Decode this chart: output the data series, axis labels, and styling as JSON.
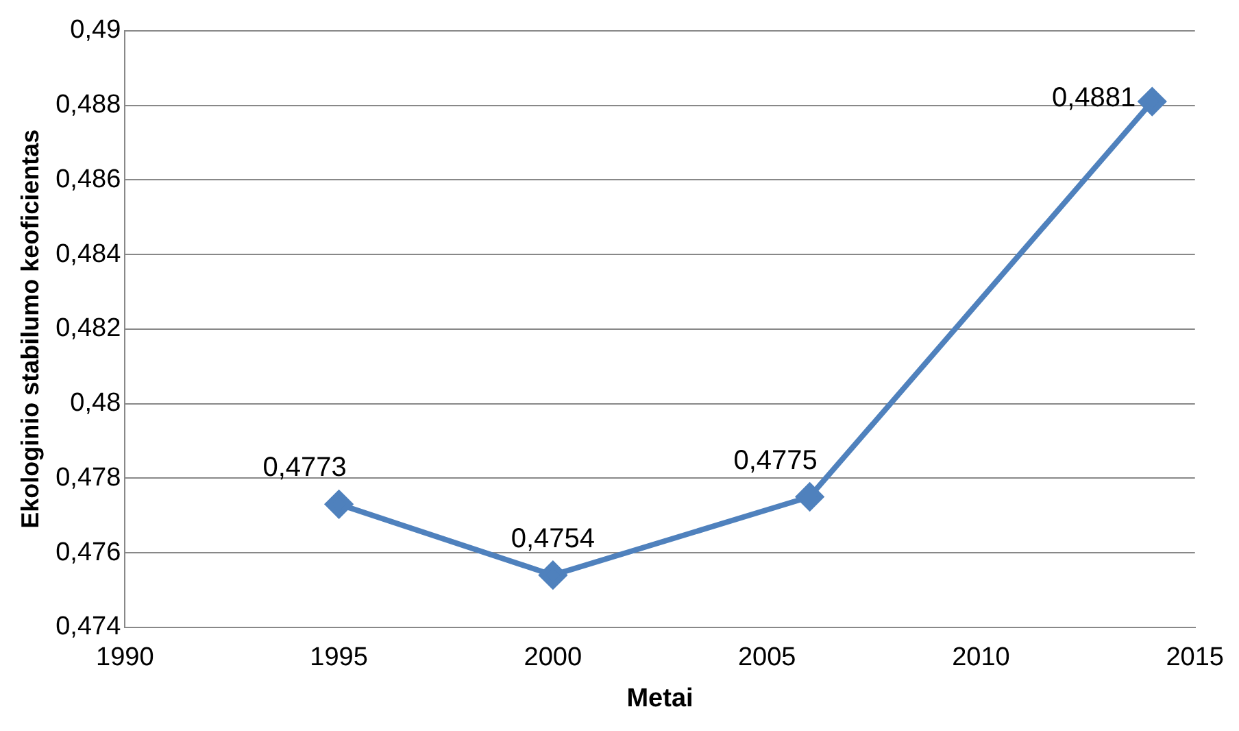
{
  "chart_data": {
    "type": "line",
    "xlabel": "Metai",
    "ylabel": "Ekologinio stabilumo keoficientas",
    "x": [
      1995,
      2000,
      2006,
      2014
    ],
    "series": [
      {
        "color": "#4f81bd",
        "values": [
          0.4773,
          0.4754,
          0.4775,
          0.4881
        ],
        "value_labels": [
          "0,4773",
          "0,4754",
          "0,4775",
          "0,4881"
        ]
      }
    ],
    "xlim": [
      1990,
      2015
    ],
    "xticks": [
      1990,
      1995,
      2000,
      2005,
      2010,
      2015
    ],
    "ylim": [
      0.474,
      0.49
    ],
    "yticks": [
      {
        "value": 0.474,
        "label": "0,474"
      },
      {
        "value": 0.476,
        "label": "0,476"
      },
      {
        "value": 0.478,
        "label": "0,478"
      },
      {
        "value": 0.48,
        "label": "0,48"
      },
      {
        "value": 0.482,
        "label": "0,482"
      },
      {
        "value": 0.484,
        "label": "0,484"
      },
      {
        "value": 0.486,
        "label": "0,486"
      },
      {
        "value": 0.488,
        "label": "0,488"
      },
      {
        "value": 0.49,
        "label": "0,49"
      }
    ],
    "grid": "y",
    "legend": false,
    "marker": "diamond",
    "line_style": "solid"
  }
}
